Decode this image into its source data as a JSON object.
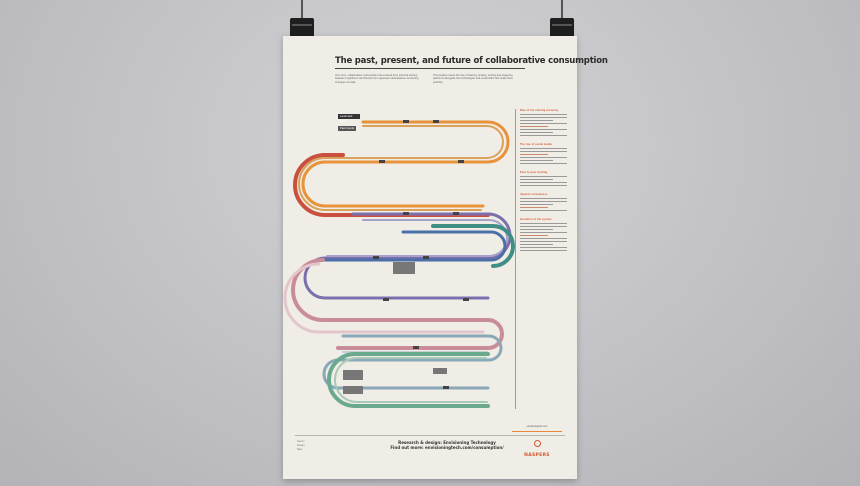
{
  "poster": {
    "title": "The past, present, and future of collaborative consumption",
    "intro_col1": "Over time, collaborative consumption has evolved from informal sharing between neighbours and friends into organised marketplaces connecting strangers at scale.",
    "intro_col2": "This timeline traces the rise of sharing, lending, renting and swapping platforms alongside the technologies and social shifts that made them possible.",
    "legend_a": "Landmark event",
    "legend_b": "Past trends",
    "track_colors": [
      "#e8923a",
      "#c9503f",
      "#7d6fae",
      "#4a6fa8",
      "#3f8f86",
      "#c98d9a",
      "#8aa8b8",
      "#6aa98e",
      "#9a9a9a"
    ],
    "footer_meta_1": "Source",
    "footer_meta_2": "Design",
    "footer_meta_3": "Date",
    "credit_line1": "Research & design: Envisioning Technology",
    "credit_line2": "Find out more: envisioningtech.com/consumption/",
    "brand_url": "envisioningtech.com",
    "brand_logo": "NASPERS"
  },
  "sidebar": {
    "sections": [
      {
        "heading": "Rise of the sharing economy",
        "lines": 10
      },
      {
        "heading": "The rise of social media",
        "lines": 8
      },
      {
        "heading": "Peer-to-peer lending",
        "lines": 6
      },
      {
        "heading": "Impacts on business",
        "lines": 7
      },
      {
        "heading": "Evolution of the system",
        "lines": 12
      }
    ]
  }
}
